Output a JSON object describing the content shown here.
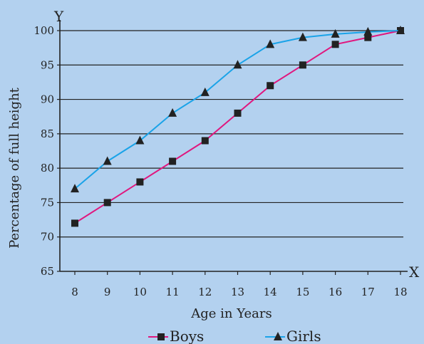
{
  "chart_data": {
    "type": "line",
    "title": "",
    "xlabel": "Age in Years",
    "ylabel": "Percentage of full height",
    "x_axis_letter": "X",
    "y_axis_letter": "Y",
    "x": [
      8,
      9,
      10,
      11,
      12,
      13,
      14,
      15,
      16,
      17,
      18
    ],
    "xlim": [
      8,
      18
    ],
    "ylim": [
      65,
      100
    ],
    "yticks": [
      65,
      70,
      75,
      80,
      85,
      90,
      95,
      100
    ],
    "grid": "horizontal",
    "legend": "bottom",
    "series": [
      {
        "name": "Boys",
        "color": "#e0177e",
        "marker": "square",
        "values": [
          72,
          75,
          78,
          81,
          84,
          88,
          92,
          95,
          98,
          99,
          100
        ]
      },
      {
        "name": "Girls",
        "color": "#1aa3e8",
        "marker": "triangle",
        "values": [
          77,
          81,
          84,
          88,
          91,
          95,
          98,
          99,
          99.5,
          99.8,
          100
        ]
      }
    ]
  }
}
